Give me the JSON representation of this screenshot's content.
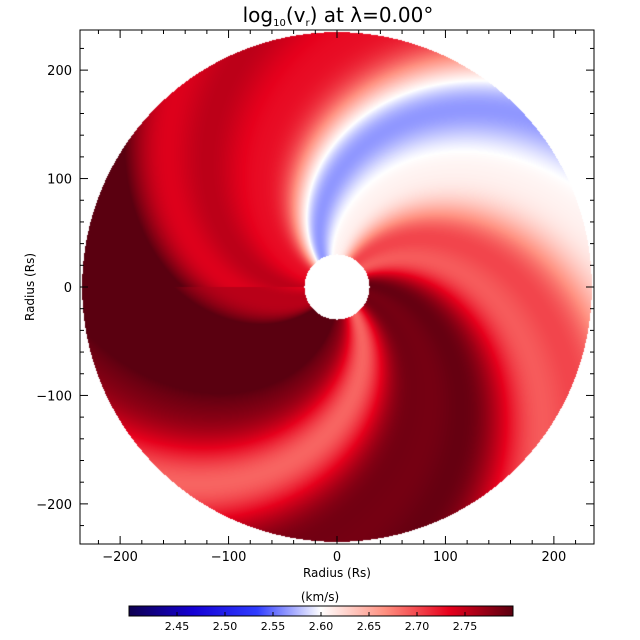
{
  "chart_data": {
    "type": "heatmap",
    "title": {
      "prefix": "log",
      "subscript": "10",
      "open": "(v",
      "inner_sub": "r",
      "close": ")  at  λ=0.00°"
    },
    "xlabel": "Radius (Rs)",
    "ylabel": "Radius (Rs)",
    "xlim": [
      -237,
      237
    ],
    "ylim": [
      -237,
      237
    ],
    "x_ticks": [
      -200,
      -100,
      0,
      100,
      200
    ],
    "y_ticks": [
      -200,
      -100,
      0,
      100,
      200
    ],
    "x_tick_labels": [
      "−200",
      "−100",
      "0",
      "100",
      "200"
    ],
    "y_tick_labels": [
      "−200",
      "−100",
      "0",
      "100",
      "200"
    ],
    "disk": {
      "inner_radius": 30,
      "outer_radius": 235
    },
    "spiral": {
      "center_angle_deg": [
        -12,
        58,
        160,
        245
      ],
      "amplitude": [
        0.72,
        0.45,
        0.55,
        0.92
      ],
      "width_deg": [
        30,
        34,
        26,
        40
      ],
      "twist_deg_per_Rs": 0.36
    },
    "colorbar": {
      "label": "(km/s)",
      "min": 2.4,
      "max": 2.8,
      "ticks": [
        2.45,
        2.5,
        2.55,
        2.6,
        2.65,
        2.7,
        2.75
      ],
      "tick_labels": [
        "2.45",
        "2.50",
        "2.55",
        "2.60",
        "2.65",
        "2.70",
        "2.75"
      ],
      "colors": [
        "#0e0050",
        "#1400d4",
        "#2f3cff",
        "#ffffff",
        "#ff9080",
        "#e6001c",
        "#5a0010"
      ]
    }
  }
}
